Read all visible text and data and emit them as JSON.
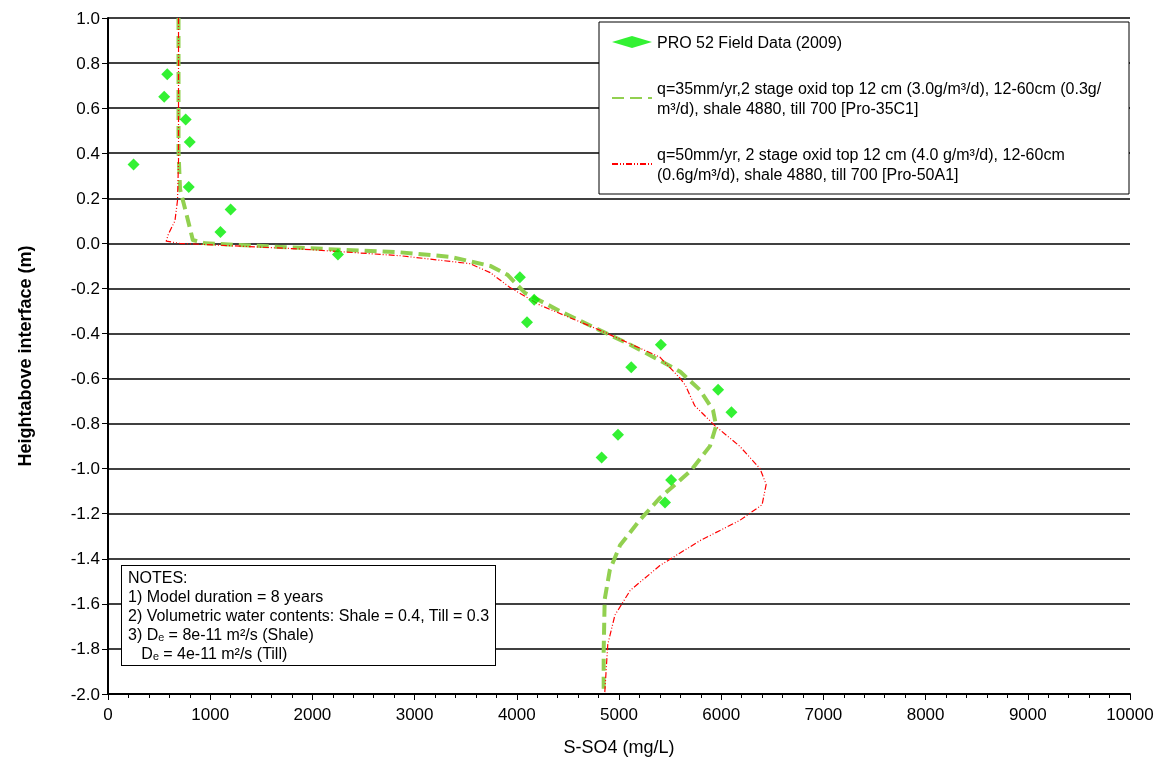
{
  "chart_data": {
    "type": "line",
    "xlabel": "S-SO4 (mg/L)",
    "ylabel": "Heightabove interface (m)",
    "xlim": [
      0,
      10000
    ],
    "xticks": [
      0,
      1000,
      2000,
      3000,
      4000,
      5000,
      6000,
      7000,
      8000,
      9000,
      10000
    ],
    "ylim": [
      -2,
      1
    ],
    "yticks": [
      {
        "value": -2,
        "label": "-2.0"
      },
      {
        "value": -1.8,
        "label": "-1.8"
      },
      {
        "value": -1.6,
        "label": "-1.6"
      },
      {
        "value": -1.4,
        "label": "-1.4"
      },
      {
        "value": -1.2,
        "label": "-1.2"
      },
      {
        "value": -1,
        "label": "-1.0"
      },
      {
        "value": -0.8,
        "label": "-0.8"
      },
      {
        "value": -0.6,
        "label": "-0.6"
      },
      {
        "value": -0.4,
        "label": "-0.4"
      },
      {
        "value": -0.2,
        "label": "-0.2"
      },
      {
        "value": 0,
        "label": "0.0"
      },
      {
        "value": 0.2,
        "label": "0.2"
      },
      {
        "value": 0.4,
        "label": "0.4"
      },
      {
        "value": 0.6,
        "label": "0.6"
      },
      {
        "value": 0.8,
        "label": "0.8"
      },
      {
        "value": 1,
        "label": "1.0"
      }
    ],
    "grid": "y",
    "legend": "top right",
    "series": [
      {
        "name": "PRO 52 Field Data (2009)",
        "type": "scatter",
        "marker": "diamond",
        "color": "#00ee00",
        "x": [
          580,
          550,
          760,
          800,
          250,
          790,
          1200,
          1100,
          2250,
          4030,
          4170,
          4100,
          5410,
          5120,
          5970,
          6100,
          4990,
          4830,
          5510,
          5450
        ],
        "values": [
          0.75,
          0.65,
          0.55,
          0.45,
          0.35,
          0.25,
          0.15,
          0.05,
          -0.05,
          -0.15,
          -0.25,
          -0.35,
          -0.45,
          -0.55,
          -0.65,
          -0.75,
          -0.85,
          -0.95,
          -1.05,
          -1.15
        ]
      },
      {
        "name": "q=35mm/yr,2 stage oxid top 12 cm (3.0g/m³/d), 12-60cm (0.3g/m³/d), shale 4880, till 700 [Pro-35C1]",
        "marker": "none",
        "line_style": "dashed",
        "color": "#92d050",
        "x": [
          690,
          690,
          705,
          770,
          830,
          950,
          1880,
          2860,
          3350,
          3740,
          3910,
          4080,
          4420,
          4810,
          5110,
          5400,
          5600,
          5790,
          5920,
          5950,
          5890,
          5700,
          5400,
          5200,
          5010,
          4910,
          4860,
          4850,
          4850
        ],
        "values": [
          1.0,
          0.41,
          0.24,
          0.125,
          0.015,
          0.0,
          -0.02,
          -0.04,
          -0.06,
          -0.1,
          -0.14,
          -0.22,
          -0.3,
          -0.385,
          -0.45,
          -0.52,
          -0.57,
          -0.65,
          -0.74,
          -0.81,
          -0.9,
          -1.01,
          -1.13,
          -1.23,
          -1.34,
          -1.45,
          -1.58,
          -1.81,
          -2.0
        ]
      },
      {
        "name": "q=50mm/yr, 2 stage oxid top 12 cm (4.0 g/m³/d), 12-60cm (0.6g/m³/d), shale 4880, till 700 [Pro-50A1]",
        "marker": "none",
        "line_style": "dotted",
        "color": "#ff0000",
        "x": [
          690,
          690,
          680,
          655,
          590,
          570,
          700,
          1880,
          2860,
          3540,
          3740,
          3930,
          4230,
          4810,
          5400,
          5600,
          5650,
          5740,
          5940,
          6180,
          6380,
          6440,
          6400,
          6180,
          5790,
          5400,
          5110,
          4960,
          4890,
          4860
        ],
        "values": [
          1.0,
          0.37,
          0.19,
          0.1,
          0.04,
          0.01,
          0.0,
          -0.025,
          -0.055,
          -0.09,
          -0.13,
          -0.195,
          -0.275,
          -0.385,
          -0.505,
          -0.6,
          -0.63,
          -0.72,
          -0.81,
          -0.9,
          -1.0,
          -1.07,
          -1.16,
          -1.23,
          -1.32,
          -1.43,
          -1.54,
          -1.65,
          -1.78,
          -2.0
        ]
      }
    ],
    "annotations": [
      "NOTES:",
      "1) Model duration = 8 years",
      "2) Volumetric water contents: Shale = 0.4, Till = 0.3",
      "3) Dₑ = 8e-11 m²/s (Shale)",
      "   Dₑ = 4e-11 m²/s (Till)"
    ]
  }
}
